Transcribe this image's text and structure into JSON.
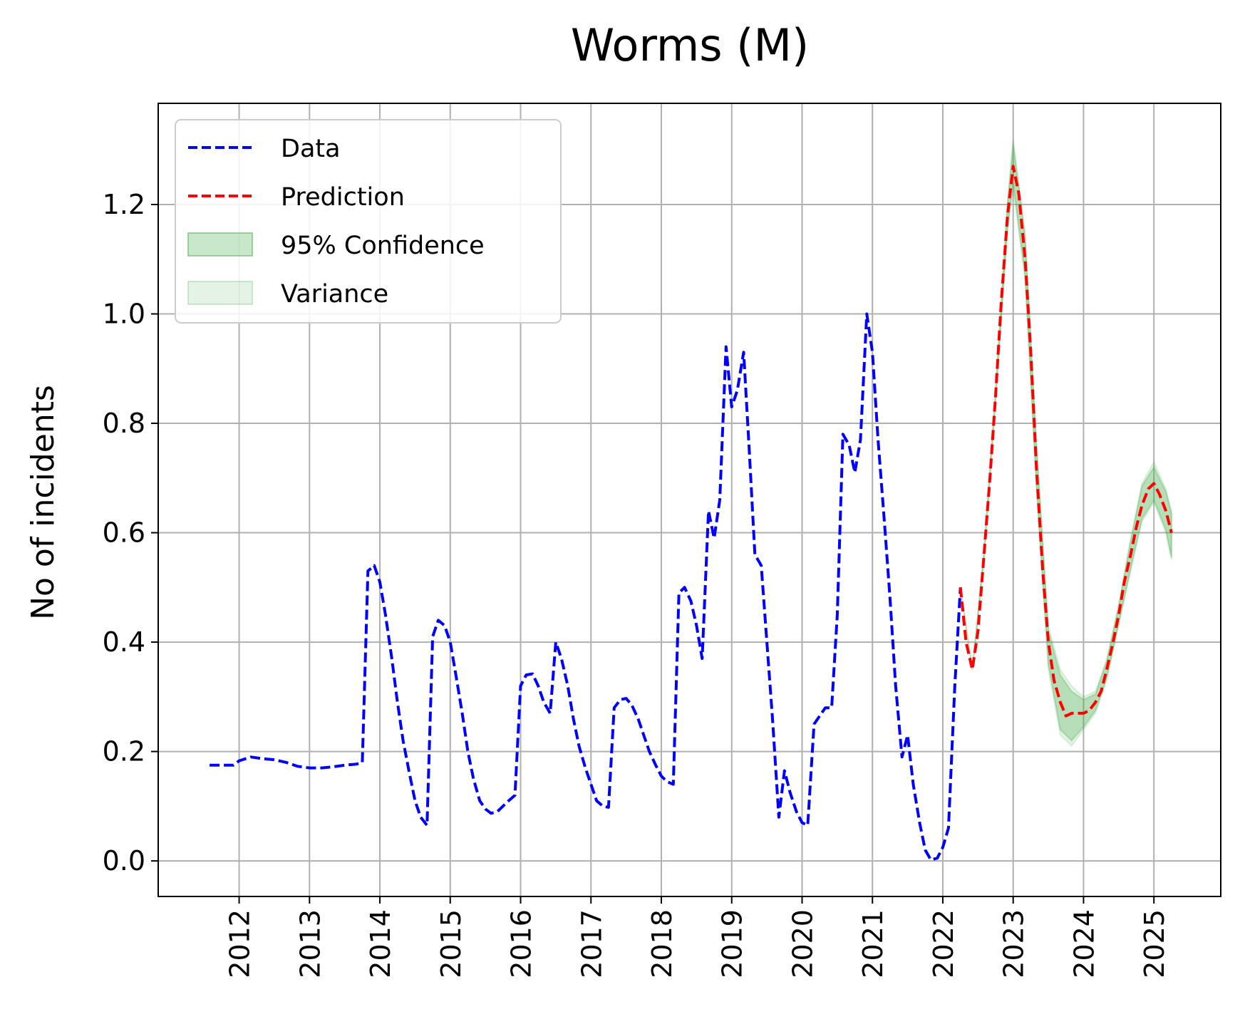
{
  "chart_data": {
    "type": "line",
    "title": "Worms (M)",
    "xlabel": "",
    "ylabel": "No of incidents",
    "xlim": [
      2010.85,
      2025.95
    ],
    "ylim": [
      -0.065,
      1.385
    ],
    "x_ticks": [
      2012,
      2013,
      2014,
      2015,
      2016,
      2017,
      2018,
      2019,
      2020,
      2021,
      2022,
      2023,
      2024,
      2025
    ],
    "x_tick_labels": [
      "2012",
      "2013",
      "2014",
      "2015",
      "2016",
      "2017",
      "2018",
      "2019",
      "2020",
      "2021",
      "2022",
      "2023",
      "2024",
      "2025"
    ],
    "y_ticks": [
      0.0,
      0.2,
      0.4,
      0.6,
      0.8,
      1.0,
      1.2
    ],
    "y_tick_labels": [
      "0.0",
      "0.2",
      "0.4",
      "0.6",
      "0.8",
      "1.0",
      "1.2"
    ],
    "grid": true,
    "legend_position": "top-left",
    "legend": [
      {
        "label": "Data",
        "kind": "dashed-line",
        "color": "#0000ff"
      },
      {
        "label": "Prediction",
        "kind": "dashed-line",
        "color": "#ff0000"
      },
      {
        "label": "95% Confidence",
        "kind": "patch",
        "color": "#4caf50",
        "opacity": 0.3
      },
      {
        "label": "Variance",
        "kind": "patch",
        "color": "#4caf50",
        "opacity": 0.15
      }
    ],
    "series": [
      {
        "name": "Data",
        "color": "#0000ff",
        "style": "dashed",
        "points": [
          [
            2011.58,
            0.175
          ],
          [
            2011.75,
            0.175
          ],
          [
            2011.92,
            0.175
          ],
          [
            2012.0,
            0.183
          ],
          [
            2012.17,
            0.19
          ],
          [
            2012.33,
            0.187
          ],
          [
            2012.5,
            0.185
          ],
          [
            2012.67,
            0.18
          ],
          [
            2012.83,
            0.173
          ],
          [
            2013.0,
            0.17
          ],
          [
            2013.17,
            0.17
          ],
          [
            2013.33,
            0.172
          ],
          [
            2013.5,
            0.175
          ],
          [
            2013.67,
            0.177
          ],
          [
            2013.75,
            0.18
          ],
          [
            2013.83,
            0.53
          ],
          [
            2013.92,
            0.54
          ],
          [
            2014.0,
            0.51
          ],
          [
            2014.08,
            0.45
          ],
          [
            2014.17,
            0.37
          ],
          [
            2014.25,
            0.29
          ],
          [
            2014.33,
            0.22
          ],
          [
            2014.42,
            0.16
          ],
          [
            2014.5,
            0.11
          ],
          [
            2014.58,
            0.08
          ],
          [
            2014.67,
            0.065
          ],
          [
            2014.75,
            0.41
          ],
          [
            2014.83,
            0.44
          ],
          [
            2014.92,
            0.43
          ],
          [
            2015.0,
            0.4
          ],
          [
            2015.08,
            0.34
          ],
          [
            2015.17,
            0.27
          ],
          [
            2015.25,
            0.2
          ],
          [
            2015.33,
            0.15
          ],
          [
            2015.42,
            0.11
          ],
          [
            2015.5,
            0.095
          ],
          [
            2015.58,
            0.087
          ],
          [
            2015.67,
            0.09
          ],
          [
            2015.75,
            0.1
          ],
          [
            2015.83,
            0.11
          ],
          [
            2015.92,
            0.12
          ],
          [
            2016.0,
            0.32
          ],
          [
            2016.08,
            0.34
          ],
          [
            2016.17,
            0.342
          ],
          [
            2016.25,
            0.32
          ],
          [
            2016.33,
            0.29
          ],
          [
            2016.42,
            0.27
          ],
          [
            2016.5,
            0.4
          ],
          [
            2016.58,
            0.37
          ],
          [
            2016.67,
            0.32
          ],
          [
            2016.75,
            0.26
          ],
          [
            2016.83,
            0.21
          ],
          [
            2016.92,
            0.17
          ],
          [
            2017.0,
            0.14
          ],
          [
            2017.08,
            0.11
          ],
          [
            2017.17,
            0.1
          ],
          [
            2017.25,
            0.098
          ],
          [
            2017.33,
            0.28
          ],
          [
            2017.42,
            0.295
          ],
          [
            2017.5,
            0.297
          ],
          [
            2017.58,
            0.285
          ],
          [
            2017.67,
            0.26
          ],
          [
            2017.75,
            0.23
          ],
          [
            2017.83,
            0.2
          ],
          [
            2017.92,
            0.175
          ],
          [
            2018.0,
            0.155
          ],
          [
            2018.08,
            0.145
          ],
          [
            2018.17,
            0.14
          ],
          [
            2018.25,
            0.49
          ],
          [
            2018.33,
            0.5
          ],
          [
            2018.42,
            0.475
          ],
          [
            2018.5,
            0.43
          ],
          [
            2018.58,
            0.37
          ],
          [
            2018.67,
            0.64
          ],
          [
            2018.75,
            0.59
          ],
          [
            2018.83,
            0.66
          ],
          [
            2018.92,
            0.94
          ],
          [
            2019.0,
            0.83
          ],
          [
            2019.08,
            0.86
          ],
          [
            2019.17,
            0.93
          ],
          [
            2019.25,
            0.75
          ],
          [
            2019.33,
            0.56
          ],
          [
            2019.42,
            0.54
          ],
          [
            2019.5,
            0.4
          ],
          [
            2019.58,
            0.26
          ],
          [
            2019.67,
            0.08
          ],
          [
            2019.75,
            0.165
          ],
          [
            2019.83,
            0.125
          ],
          [
            2019.92,
            0.09
          ],
          [
            2020.0,
            0.07
          ],
          [
            2020.08,
            0.065
          ],
          [
            2020.17,
            0.25
          ],
          [
            2020.25,
            0.265
          ],
          [
            2020.33,
            0.28
          ],
          [
            2020.42,
            0.28
          ],
          [
            2020.5,
            0.45
          ],
          [
            2020.58,
            0.78
          ],
          [
            2020.67,
            0.76
          ],
          [
            2020.75,
            0.71
          ],
          [
            2020.83,
            0.77
          ],
          [
            2020.92,
            1.0
          ],
          [
            2021.0,
            0.93
          ],
          [
            2021.08,
            0.77
          ],
          [
            2021.17,
            0.62
          ],
          [
            2021.25,
            0.48
          ],
          [
            2021.33,
            0.32
          ],
          [
            2021.42,
            0.19
          ],
          [
            2021.5,
            0.23
          ],
          [
            2021.58,
            0.14
          ],
          [
            2021.67,
            0.07
          ],
          [
            2021.75,
            0.02
          ],
          [
            2021.83,
            0.002
          ],
          [
            2021.92,
            0.005
          ],
          [
            2022.0,
            0.025
          ],
          [
            2022.08,
            0.06
          ],
          [
            2022.17,
            0.32
          ],
          [
            2022.25,
            0.5
          ]
        ]
      },
      {
        "name": "Prediction",
        "color": "#ff0000",
        "style": "dashed",
        "points": [
          [
            2022.25,
            0.5
          ],
          [
            2022.33,
            0.4
          ],
          [
            2022.42,
            0.35
          ],
          [
            2022.5,
            0.42
          ],
          [
            2022.58,
            0.55
          ],
          [
            2022.67,
            0.7
          ],
          [
            2022.75,
            0.85
          ],
          [
            2022.83,
            1.02
          ],
          [
            2022.92,
            1.18
          ],
          [
            2023.0,
            1.27
          ],
          [
            2023.08,
            1.22
          ],
          [
            2023.17,
            1.1
          ],
          [
            2023.25,
            0.93
          ],
          [
            2023.33,
            0.72
          ],
          [
            2023.42,
            0.53
          ],
          [
            2023.5,
            0.4
          ],
          [
            2023.58,
            0.33
          ],
          [
            2023.67,
            0.29
          ],
          [
            2023.75,
            0.265
          ],
          [
            2023.83,
            0.27
          ],
          [
            2023.92,
            0.27
          ],
          [
            2024.0,
            0.27
          ],
          [
            2024.08,
            0.275
          ],
          [
            2024.17,
            0.29
          ],
          [
            2024.25,
            0.31
          ],
          [
            2024.33,
            0.35
          ],
          [
            2024.42,
            0.4
          ],
          [
            2024.5,
            0.45
          ],
          [
            2024.58,
            0.51
          ],
          [
            2024.67,
            0.56
          ],
          [
            2024.75,
            0.61
          ],
          [
            2024.83,
            0.65
          ],
          [
            2024.92,
            0.68
          ],
          [
            2025.0,
            0.69
          ],
          [
            2025.08,
            0.67
          ],
          [
            2025.17,
            0.64
          ],
          [
            2025.25,
            0.6
          ]
        ]
      }
    ],
    "bands": [
      {
        "name": "Variance",
        "color": "#4caf50",
        "opacity": 0.15,
        "x": [
          2022.25,
          2022.42,
          2022.58,
          2022.75,
          2022.92,
          2023.0,
          2023.17,
          2023.33,
          2023.5,
          2023.67,
          2023.83,
          2024.0,
          2024.17,
          2024.33,
          2024.5,
          2024.67,
          2024.83,
          2025.0,
          2025.17,
          2025.25
        ],
        "lower": [
          0.5,
          0.35,
          0.54,
          0.84,
          1.15,
          1.23,
          1.06,
          0.68,
          0.35,
          0.23,
          0.21,
          0.24,
          0.27,
          0.33,
          0.43,
          0.53,
          0.62,
          0.655,
          0.6,
          0.55
        ],
        "upper": [
          0.5,
          0.35,
          0.56,
          0.86,
          1.21,
          1.32,
          1.15,
          0.77,
          0.43,
          0.35,
          0.32,
          0.3,
          0.31,
          0.37,
          0.47,
          0.59,
          0.69,
          0.73,
          0.68,
          0.64
        ]
      },
      {
        "name": "95% Confidence",
        "color": "#4caf50",
        "opacity": 0.3,
        "x": [
          2022.25,
          2022.42,
          2022.58,
          2022.75,
          2022.92,
          2023.0,
          2023.17,
          2023.33,
          2023.5,
          2023.67,
          2023.83,
          2024.0,
          2024.17,
          2024.33,
          2024.5,
          2024.67,
          2024.83,
          2025.0,
          2025.17,
          2025.25
        ],
        "lower": [
          0.5,
          0.35,
          0.545,
          0.845,
          1.16,
          1.24,
          1.07,
          0.69,
          0.36,
          0.24,
          0.22,
          0.245,
          0.275,
          0.335,
          0.435,
          0.535,
          0.625,
          0.66,
          0.605,
          0.555
        ],
        "upper": [
          0.5,
          0.35,
          0.555,
          0.855,
          1.2,
          1.31,
          1.14,
          0.76,
          0.42,
          0.34,
          0.31,
          0.295,
          0.305,
          0.365,
          0.465,
          0.585,
          0.685,
          0.72,
          0.675,
          0.635
        ]
      }
    ]
  }
}
